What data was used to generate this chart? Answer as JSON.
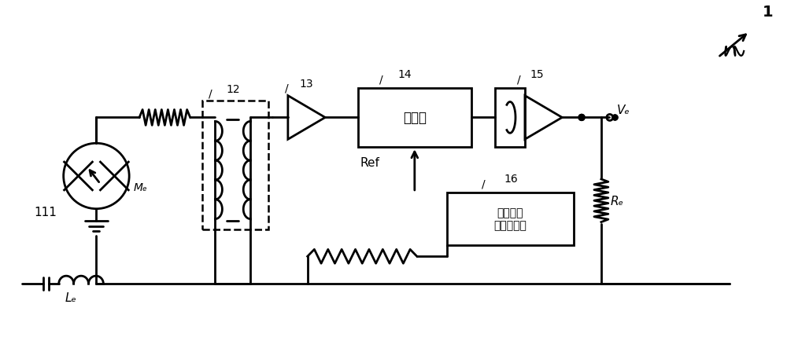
{
  "bg_color": "#ffffff",
  "line_color": "#000000",
  "lw": 2.0,
  "label_1": "11",
  "label_Mf": "Mₑ",
  "label_Lf": "Lₑ",
  "label_12": "12",
  "label_13": "13",
  "label_14": "14",
  "label_15": "15",
  "label_16": "16",
  "label_demod": "解调器",
  "label_modsig": "调制解调\n信号发生器",
  "label_Ref": "Ref",
  "label_Vf": "Vₑ",
  "label_Rf": "Rₑ",
  "label_num": "1"
}
